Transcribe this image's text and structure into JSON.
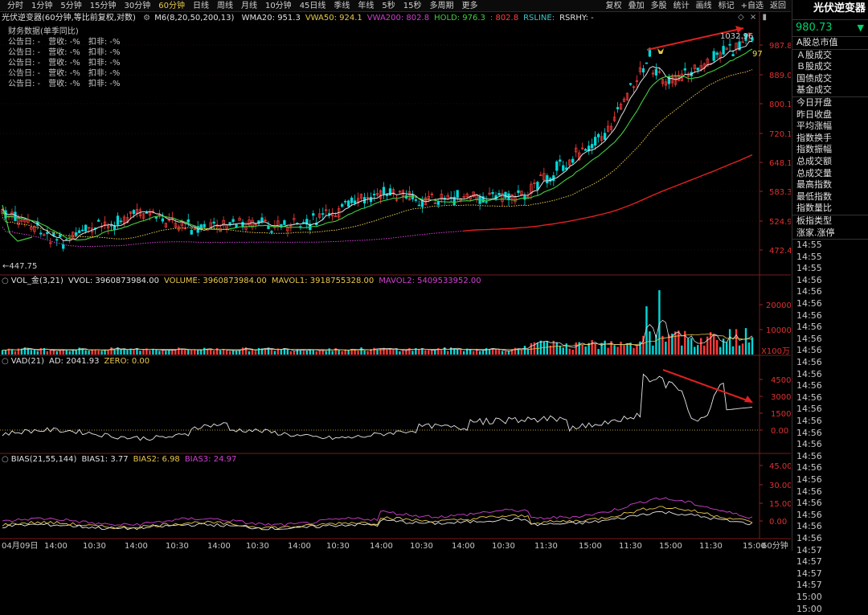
{
  "topbar": {
    "tabs": [
      {
        "label": "分时",
        "active": false
      },
      {
        "label": "1分钟",
        "active": false
      },
      {
        "label": "5分钟",
        "active": false
      },
      {
        "label": "15分钟",
        "active": false
      },
      {
        "label": "30分钟",
        "active": false
      },
      {
        "label": "60分钟",
        "active": true
      },
      {
        "label": "日线",
        "active": false
      },
      {
        "label": "周线",
        "active": false
      },
      {
        "label": "月线",
        "active": false
      },
      {
        "label": "10分钟",
        "active": false
      },
      {
        "label": "45日线",
        "active": false
      },
      {
        "label": "季线",
        "active": false
      },
      {
        "label": "年线",
        "active": false
      },
      {
        "label": "5秒",
        "active": false
      },
      {
        "label": "15秒",
        "active": false
      },
      {
        "label": "多周期",
        "active": false
      },
      {
        "label": "更多",
        "active": false
      }
    ],
    "tools": [
      "复权",
      "叠加",
      "多股",
      "统计",
      "画线",
      "标记",
      "+自选",
      "返回"
    ]
  },
  "main": {
    "title": "光伏逆变器(60分钟,等比前复权,对数)",
    "ma_label": "M6(8,20,50,200,13)",
    "indicators": [
      {
        "text": "WMA20: 951.3",
        "color": "#e0e0e0"
      },
      {
        "text": "VWA50: 924.1",
        "color": "#e8c84a"
      },
      {
        "text": "VWA200: 802.8",
        "color": "#d040d0"
      },
      {
        "text": "HOLD: 976.3",
        "color": "#40d040"
      },
      {
        "text": ": 802.8",
        "color": "#ff4040"
      },
      {
        "text": "RSLINE:",
        "color": "#40c8c8"
      },
      {
        "text": "RSRHY: -",
        "color": "#e0e0e0"
      }
    ],
    "fin_title": "财务数据(单季同比)",
    "fin_rows": [
      {
        "a": "公告日: -",
        "b": "营收: -%",
        "c": "扣非: -%"
      },
      {
        "a": "公告日: -",
        "b": "营收: -%",
        "c": "扣非: -%"
      },
      {
        "a": "公告日: -",
        "b": "营收: -%",
        "c": "扣非: -%"
      },
      {
        "a": "公告日: -",
        "b": "营收: -%",
        "c": "扣非: -%"
      },
      {
        "a": "公告日: -",
        "b": "营收: -%",
        "c": "扣非: -%"
      }
    ],
    "yticks": [
      "987.8",
      "889.0",
      "800.1",
      "720.1",
      "648.1",
      "583.3",
      "524.9",
      "472.4"
    ],
    "high_label": "1032.96",
    "low_label": "447.75",
    "last_label": "97"
  },
  "vol": {
    "header": [
      {
        "text": "VOL_金(3,21)",
        "color": "#e0e0e0"
      },
      {
        "text": "VVOL: 3960873984.00",
        "color": "#e0e0e0"
      },
      {
        "text": "VOLUME: 3960873984.00",
        "color": "#e8c84a"
      },
      {
        "text": "MAVOL1: 3918755328.00",
        "color": "#e8c84a"
      },
      {
        "text": "MAVOL2: 5409533952.00",
        "color": "#d040d0"
      }
    ],
    "yticks": [
      "20000",
      "10000"
    ],
    "unit": "X100万"
  },
  "vad": {
    "header": [
      {
        "text": "VAD(21)",
        "color": "#e0e0e0"
      },
      {
        "text": "AD: 2041.93",
        "color": "#e0e0e0"
      },
      {
        "text": "ZERO: 0.00",
        "color": "#e8c84a"
      }
    ],
    "yticks": [
      "4500",
      "3000",
      "1500",
      "0.00"
    ]
  },
  "bias": {
    "header": [
      {
        "text": "BIAS(21,55,144)",
        "color": "#e0e0e0"
      },
      {
        "text": "BIAS1: 3.77",
        "color": "#e0e0e0"
      },
      {
        "text": "BIAS2: 6.98",
        "color": "#e8c84a"
      },
      {
        "text": "BIAS3: 24.97",
        "color": "#d040d0"
      }
    ],
    "yticks": [
      "45.00",
      "30.00",
      "15.00",
      "0.00"
    ]
  },
  "xaxis": {
    "labels": [
      "04月09日",
      "14:00",
      "10:30",
      "14:00",
      "10:30",
      "14:00",
      "10:30",
      "14:00",
      "10:30",
      "14:00",
      "10:30",
      "14:00",
      "10:30",
      "11:30",
      "15:00",
      "11:30",
      "15:00",
      "11:30",
      "15:00"
    ],
    "period": "60分钟"
  },
  "right_panel": {
    "title": "光伏逆变器",
    "price": "980.73",
    "items": [
      "A股总市值",
      "Ａ股成交",
      "Ｂ股成交",
      "国债成交",
      "基金成交",
      "今日开盘",
      "昨日收盘",
      "平均涨幅",
      "指数换手",
      "指数振幅",
      "总成交额",
      "总成交量",
      "最高指数",
      "最低指数",
      "指数量比",
      "板指类型",
      "涨家.涨停"
    ],
    "times": [
      "14:55",
      "14:55",
      "14:55",
      "14:56",
      "14:56",
      "14:56",
      "14:56",
      "14:56",
      "14:56",
      "14:56",
      "14:56",
      "14:56",
      "14:56",
      "14:56",
      "14:56",
      "14:56",
      "14:56",
      "14:56",
      "14:56",
      "14:56",
      "14:56",
      "14:56",
      "14:56",
      "14:56",
      "14:56",
      "14:56",
      "14:57",
      "14:57",
      "14:57",
      "14:57",
      "15:00",
      "15:00"
    ]
  },
  "colors": {
    "up": "#ff3b3b",
    "down": "#00d8d8",
    "ma8": "#e0e0e0",
    "ma20": "#40d040",
    "ma50": "#e8c84a",
    "ma200": "#d040d0",
    "red": "#e02020"
  }
}
